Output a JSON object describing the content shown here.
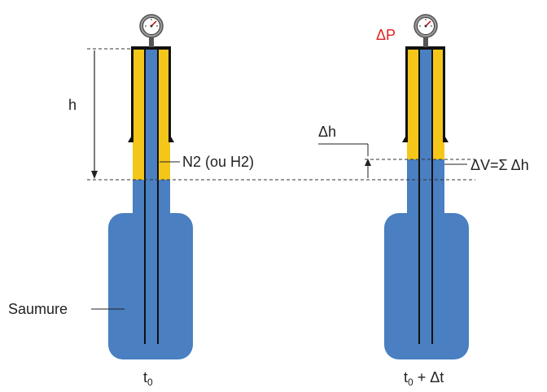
{
  "labels": {
    "height": "h",
    "delta_h": "Δh",
    "gas": "N2 (ou H2)",
    "volume_change": "ΔV=Σ Δh",
    "pressure_change": "ΔP",
    "brine": "Saumure",
    "time_initial_base": "t",
    "time_initial_sub": "0",
    "time_final_base": "t",
    "time_final_sub": "0",
    "time_final_suffix": " + Δt"
  },
  "colors": {
    "brine_blue": "#4a7fc1",
    "gas_yellow": "#f5c61a",
    "pipe_black": "#111111",
    "pressure_red": "#e02020",
    "gauge_grey": "#9a9a9a"
  }
}
